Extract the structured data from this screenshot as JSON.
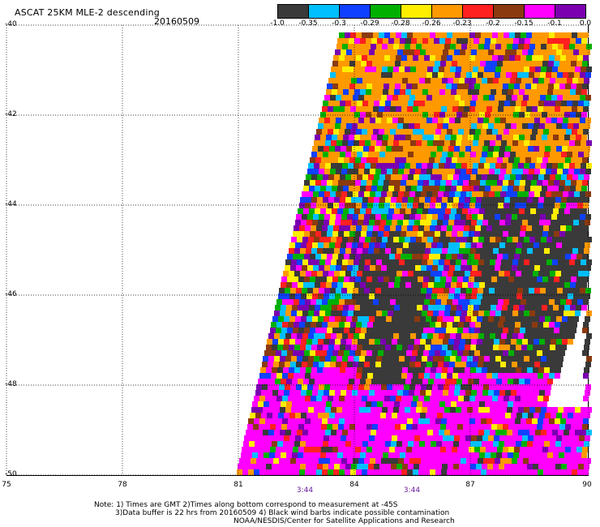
{
  "header": {
    "title": "ASCAT 25KM MLE-2 descending",
    "date": "20160509"
  },
  "colorbar": {
    "colors": [
      "#3a3a3a",
      "#00bfff",
      "#1040ff",
      "#00b000",
      "#ffee00",
      "#ff9900",
      "#ff2020",
      "#8b3a10",
      "#ff00ff",
      "#7a00b0"
    ],
    "labels": [
      "-1.0",
      "-0.35",
      "-0.3",
      "-0.29",
      "-0.28",
      "-0.26",
      "-0.23",
      "-0.2",
      "-0.15",
      "-0.1",
      "0.0"
    ]
  },
  "axes": {
    "lat_labels": [
      "-40",
      "-42",
      "-44",
      "-46",
      "-48",
      "-50"
    ],
    "lon_labels": [
      "75",
      "78",
      "81",
      "84",
      "87",
      "90"
    ],
    "time_labels": [
      "3:44",
      "3:44"
    ]
  },
  "notes": {
    "line1": "Note: 1) Times are GMT 2)Times along bottom correspond to measurement at -45S",
    "line2": "3)Data buffer is 22 hrs from 20160509 4) Black wind barbs indicate possible contamination",
    "line3": "NOAA/NESDIS/Center for Satellite Applications and Research"
  }
}
